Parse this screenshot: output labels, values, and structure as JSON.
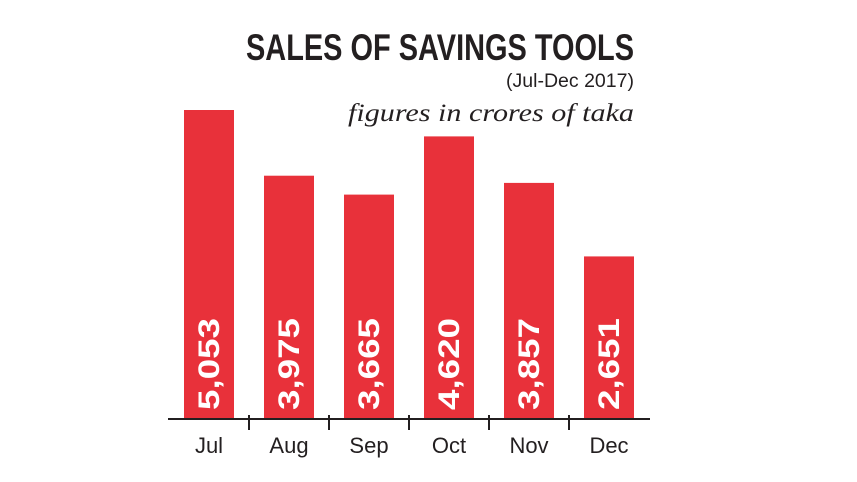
{
  "chart_data": {
    "type": "bar",
    "title": "SALES OF SAVINGS TOOLS",
    "subtitle": "(Jul-Dec 2017)",
    "unit_note": "figures in crores of taka",
    "categories": [
      "Jul",
      "Aug",
      "Sep",
      "Oct",
      "Nov",
      "Dec"
    ],
    "values": [
      5053,
      3975,
      3665,
      4620,
      3857,
      2651
    ],
    "value_labels": [
      "5,053",
      "3,975",
      "3,665",
      "4,620",
      "3,857",
      "2,651"
    ],
    "ylim": [
      0,
      5053
    ],
    "xlabel": "",
    "ylabel": "",
    "grid": false,
    "bar_color": "#e8313a",
    "text_color": "#231f20"
  }
}
